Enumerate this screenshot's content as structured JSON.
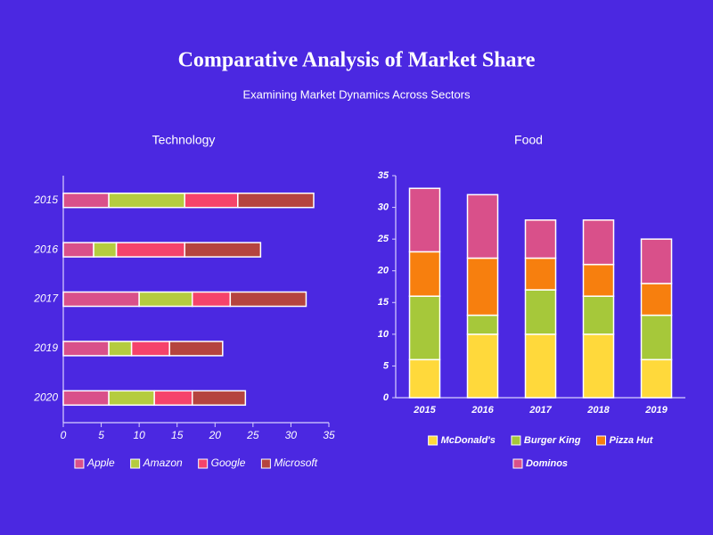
{
  "title": "Comparative Analysis of Market Share",
  "subtitle": "Examining Market Dynamics Across Sectors",
  "chart_data": [
    {
      "type": "bar",
      "orientation": "horizontal",
      "stacked": true,
      "title": "Technology",
      "categories": [
        "2015",
        "2016",
        "2017",
        "2019",
        "2020"
      ],
      "series": [
        {
          "name": "Apple",
          "color": "#d9508a",
          "values": [
            6,
            4,
            10,
            6,
            6
          ]
        },
        {
          "name": "Amazon",
          "color": "#b5cc3f",
          "values": [
            10,
            3,
            7,
            3,
            6
          ]
        },
        {
          "name": "Google",
          "color": "#f5436b",
          "values": [
            7,
            9,
            5,
            5,
            5
          ]
        },
        {
          "name": "Microsoft",
          "color": "#b5443f",
          "values": [
            10,
            10,
            10,
            7,
            7
          ]
        }
      ],
      "xlim": [
        0,
        35
      ],
      "xticks": [
        0,
        5,
        10,
        15,
        20,
        25,
        30,
        35
      ],
      "legend": "bottom"
    },
    {
      "type": "bar",
      "orientation": "vertical",
      "stacked": true,
      "title": "Food",
      "categories": [
        "2015",
        "2016",
        "2017",
        "2018",
        "2019"
      ],
      "series": [
        {
          "name": "McDonald's",
          "color": "#ffd93b",
          "values": [
            6,
            10,
            10,
            10,
            6
          ]
        },
        {
          "name": "Burger King",
          "color": "#a6c83a",
          "values": [
            10,
            3,
            7,
            6,
            7
          ]
        },
        {
          "name": "Pizza Hut",
          "color": "#f77f0e",
          "values": [
            7,
            9,
            5,
            5,
            5
          ]
        },
        {
          "name": "Dominos",
          "color": "#d9508a",
          "values": [
            10,
            10,
            6,
            7,
            7
          ]
        }
      ],
      "ylim": [
        0,
        35
      ],
      "yticks": [
        0,
        5,
        10,
        15,
        20,
        25,
        30,
        35
      ],
      "legend": "bottom"
    }
  ]
}
